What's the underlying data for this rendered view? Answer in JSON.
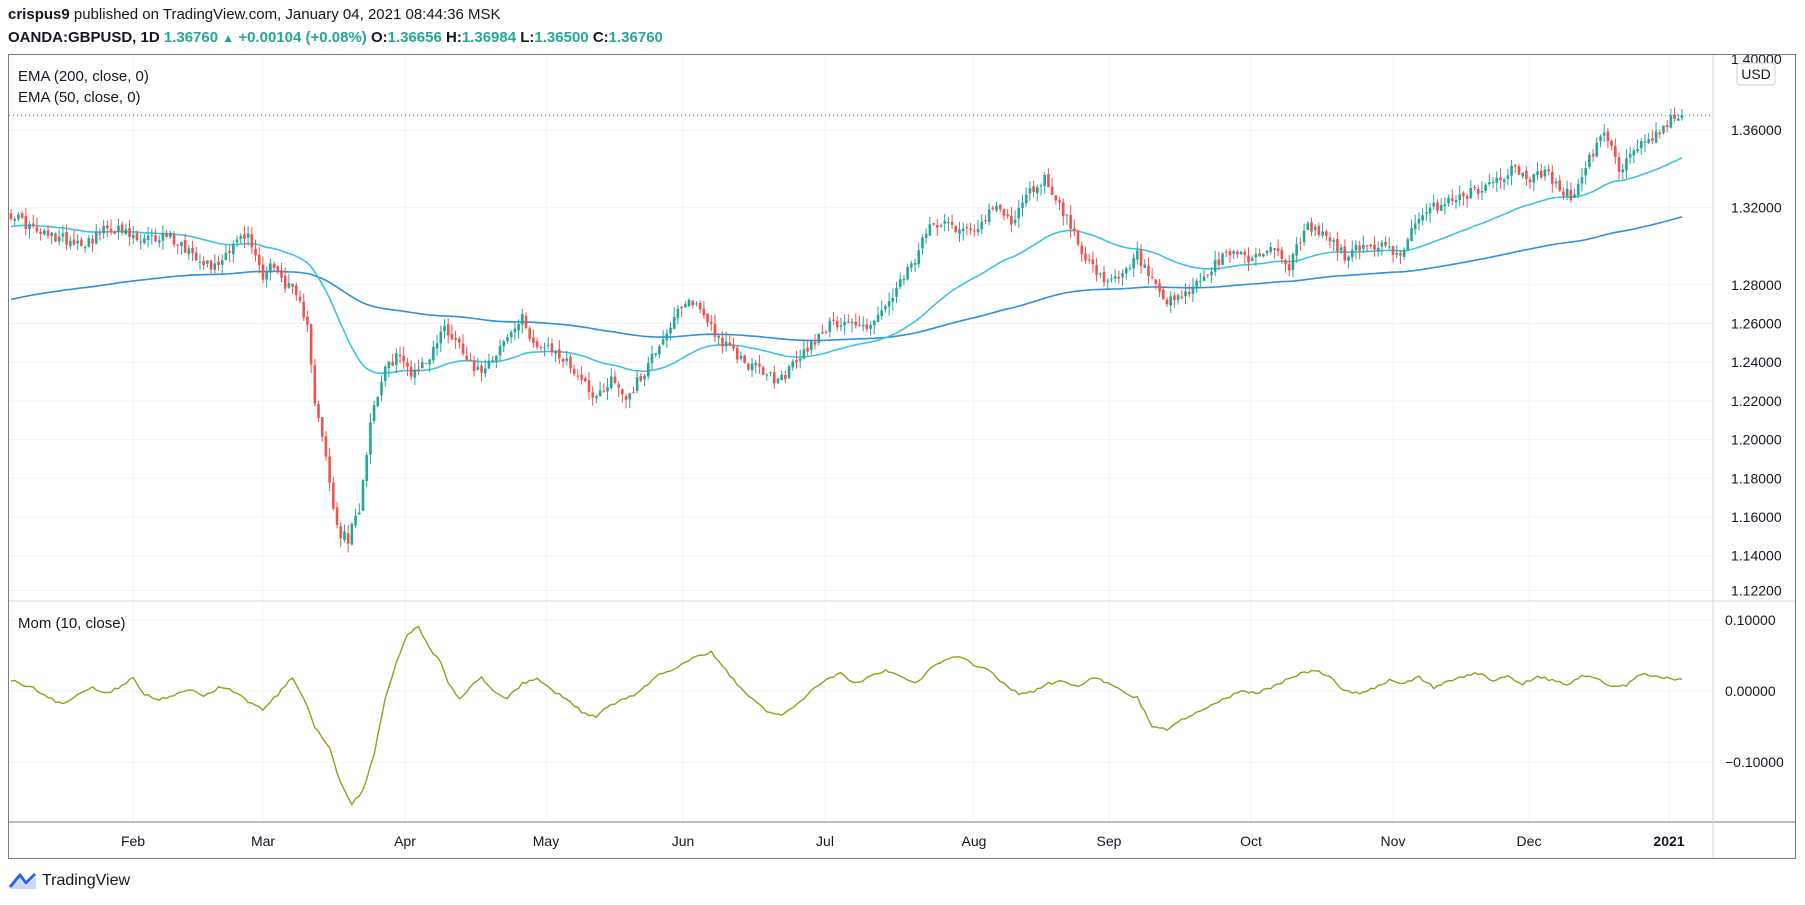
{
  "header": {
    "user": "crispus9",
    "published": "published on TradingView.com, January 04, 2021 08:44:36 MSK",
    "symbol": "OANDA:GBPUSD, 1D",
    "last": "1.36760",
    "triangle": "▲",
    "change": "+0.00104 (+0.08%)",
    "o_label": "O:",
    "o_val": "1.36656",
    "h_label": "H:",
    "h_val": "1.36984",
    "l_label": "L:",
    "l_val": "1.36500",
    "c_label": "C:",
    "c_val": "1.36760"
  },
  "indicators": {
    "ema200": "EMA (200, close, 0)",
    "ema50": "EMA (50, close, 0)",
    "mom": "Mom (10, close)"
  },
  "currency": "USD",
  "footer": {
    "brand": "TradingView",
    "logo_icon": "tradingview-logo-icon"
  },
  "colors": {
    "up": "#26a69a",
    "down": "#ef5350",
    "ema50": "#3dc4dc",
    "ema200": "#2f8fe0",
    "mom": "#9b9b1a"
  },
  "chart_data": [
    {
      "type": "candlestick",
      "yaxis_ticks": [
        "1.40000",
        "1.36000",
        "1.32000",
        "1.28000",
        "1.26000",
        "1.24000",
        "1.22000",
        "1.20000",
        "1.18000",
        "1.16000",
        "1.14000",
        "1.12200"
      ],
      "ylim": [
        1.122,
        1.4
      ],
      "x_labels": [
        "Feb",
        "Mar",
        "Apr",
        "May",
        "Jun",
        "Jul",
        "Aug",
        "Sep",
        "Oct",
        "Nov",
        "Dec",
        "2021"
      ],
      "close_key_points": [
        [
          0,
          1.317
        ],
        [
          8,
          1.306
        ],
        [
          20,
          1.302
        ],
        [
          27,
          1.31
        ],
        [
          35,
          1.302
        ],
        [
          42,
          1.306
        ],
        [
          48,
          1.298
        ],
        [
          55,
          1.289
        ],
        [
          60,
          1.302
        ],
        [
          64,
          1.305
        ],
        [
          68,
          1.285
        ],
        [
          70,
          1.291
        ],
        [
          76,
          1.276
        ],
        [
          80,
          1.262
        ],
        [
          82,
          1.22
        ],
        [
          85,
          1.19
        ],
        [
          88,
          1.153
        ],
        [
          91,
          1.148
        ],
        [
          94,
          1.165
        ],
        [
          97,
          1.21
        ],
        [
          100,
          1.232
        ],
        [
          104,
          1.244
        ],
        [
          108,
          1.235
        ],
        [
          112,
          1.24
        ],
        [
          117,
          1.258
        ],
        [
          122,
          1.247
        ],
        [
          126,
          1.235
        ],
        [
          132,
          1.248
        ],
        [
          138,
          1.262
        ],
        [
          142,
          1.248
        ],
        [
          147,
          1.245
        ],
        [
          152,
          1.236
        ],
        [
          158,
          1.222
        ],
        [
          162,
          1.232
        ],
        [
          166,
          1.222
        ],
        [
          170,
          1.232
        ],
        [
          175,
          1.25
        ],
        [
          180,
          1.265
        ],
        [
          184,
          1.272
        ],
        [
          188,
          1.262
        ],
        [
          192,
          1.25
        ],
        [
          198,
          1.24
        ],
        [
          203,
          1.235
        ],
        [
          207,
          1.23
        ],
        [
          212,
          1.24
        ],
        [
          216,
          1.25
        ],
        [
          220,
          1.258
        ],
        [
          225,
          1.262
        ],
        [
          230,
          1.258
        ],
        [
          235,
          1.265
        ],
        [
          240,
          1.28
        ],
        [
          244,
          1.293
        ],
        [
          248,
          1.31
        ],
        [
          252,
          1.315
        ],
        [
          256,
          1.308
        ],
        [
          262,
          1.312
        ],
        [
          266,
          1.32
        ],
        [
          270,
          1.313
        ],
        [
          275,
          1.328
        ],
        [
          279,
          1.335
        ],
        [
          282,
          1.325
        ],
        [
          286,
          1.31
        ],
        [
          290,
          1.295
        ],
        [
          295,
          1.28
        ],
        [
          300,
          1.284
        ],
        [
          304,
          1.295
        ],
        [
          307,
          1.285
        ],
        [
          311,
          1.27
        ],
        [
          315,
          1.272
        ],
        [
          320,
          1.28
        ],
        [
          325,
          1.29
        ],
        [
          330,
          1.298
        ],
        [
          335,
          1.293
        ],
        [
          340,
          1.3
        ],
        [
          345,
          1.29
        ],
        [
          350,
          1.31
        ],
        [
          355,
          1.305
        ],
        [
          360,
          1.295
        ],
        [
          365,
          1.3
        ],
        [
          370,
          1.3
        ],
        [
          374,
          1.295
        ],
        [
          379,
          1.31
        ],
        [
          384,
          1.32
        ],
        [
          390,
          1.325
        ],
        [
          395,
          1.328
        ],
        [
          400,
          1.333
        ],
        [
          405,
          1.34
        ],
        [
          410,
          1.335
        ],
        [
          414,
          1.338
        ],
        [
          418,
          1.33
        ],
        [
          422,
          1.325
        ],
        [
          426,
          1.345
        ],
        [
          430,
          1.358
        ],
        [
          434,
          1.34
        ],
        [
          438,
          1.35
        ],
        [
          442,
          1.355
        ],
        [
          446,
          1.362
        ],
        [
          449,
          1.366
        ],
        [
          451,
          1.3676
        ]
      ],
      "last_price": 1.3676,
      "ema50_end": 1.335,
      "ema200_end": 1.302
    },
    {
      "type": "line",
      "name": "Mom (10, close)",
      "yaxis_ticks": [
        "0.10000",
        "0.00000",
        "−0.10000"
      ],
      "ylim": [
        -0.185,
        0.12
      ],
      "key_points": [
        [
          0,
          0.015
        ],
        [
          6,
          0.005
        ],
        [
          10,
          -0.01
        ],
        [
          14,
          -0.018
        ],
        [
          18,
          -0.005
        ],
        [
          22,
          0.005
        ],
        [
          26,
          -0.003
        ],
        [
          30,
          0.008
        ],
        [
          33,
          0.02
        ],
        [
          36,
          -0.005
        ],
        [
          40,
          -0.012
        ],
        [
          44,
          -0.005
        ],
        [
          48,
          0.003
        ],
        [
          52,
          -0.008
        ],
        [
          56,
          0.005
        ],
        [
          60,
          0.0
        ],
        [
          64,
          -0.015
        ],
        [
          68,
          -0.025
        ],
        [
          72,
          -0.005
        ],
        [
          76,
          0.02
        ],
        [
          79,
          -0.01
        ],
        [
          82,
          -0.05
        ],
        [
          86,
          -0.08
        ],
        [
          89,
          -0.13
        ],
        [
          92,
          -0.16
        ],
        [
          95,
          -0.14
        ],
        [
          98,
          -0.09
        ],
        [
          101,
          -0.01
        ],
        [
          104,
          0.04
        ],
        [
          107,
          0.08
        ],
        [
          110,
          0.09
        ],
        [
          113,
          0.06
        ],
        [
          116,
          0.04
        ],
        [
          118,
          0.01
        ],
        [
          121,
          -0.01
        ],
        [
          124,
          0.005
        ],
        [
          127,
          0.02
        ],
        [
          130,
          0.0
        ],
        [
          134,
          -0.01
        ],
        [
          138,
          0.01
        ],
        [
          142,
          0.018
        ],
        [
          146,
          0.0
        ],
        [
          150,
          -0.01
        ],
        [
          154,
          -0.03
        ],
        [
          158,
          -0.035
        ],
        [
          162,
          -0.02
        ],
        [
          166,
          -0.01
        ],
        [
          170,
          0.0
        ],
        [
          174,
          0.02
        ],
        [
          178,
          0.03
        ],
        [
          182,
          0.04
        ],
        [
          186,
          0.05
        ],
        [
          189,
          0.055
        ],
        [
          192,
          0.035
        ],
        [
          196,
          0.01
        ],
        [
          200,
          -0.01
        ],
        [
          204,
          -0.03
        ],
        [
          208,
          -0.035
        ],
        [
          212,
          -0.02
        ],
        [
          216,
          0.0
        ],
        [
          220,
          0.015
        ],
        [
          224,
          0.025
        ],
        [
          228,
          0.01
        ],
        [
          232,
          0.02
        ],
        [
          236,
          0.028
        ],
        [
          240,
          0.02
        ],
        [
          244,
          0.01
        ],
        [
          248,
          0.03
        ],
        [
          252,
          0.045
        ],
        [
          256,
          0.05
        ],
        [
          260,
          0.035
        ],
        [
          264,
          0.03
        ],
        [
          268,
          0.01
        ],
        [
          272,
          -0.005
        ],
        [
          276,
          0.0
        ],
        [
          280,
          0.01
        ],
        [
          284,
          0.015
        ],
        [
          288,
          0.005
        ],
        [
          292,
          0.02
        ],
        [
          296,
          0.01
        ],
        [
          300,
          0.0
        ],
        [
          304,
          -0.01
        ],
        [
          308,
          -0.05
        ],
        [
          312,
          -0.055
        ],
        [
          316,
          -0.04
        ],
        [
          320,
          -0.03
        ],
        [
          324,
          -0.02
        ],
        [
          328,
          -0.01
        ],
        [
          332,
          0.0
        ],
        [
          336,
          -0.003
        ],
        [
          340,
          0.005
        ],
        [
          344,
          0.015
        ],
        [
          348,
          0.025
        ],
        [
          352,
          0.03
        ],
        [
          356,
          0.02
        ],
        [
          360,
          0.0
        ],
        [
          364,
          -0.003
        ],
        [
          368,
          0.005
        ],
        [
          372,
          0.015
        ],
        [
          376,
          0.01
        ],
        [
          380,
          0.02
        ],
        [
          384,
          0.005
        ],
        [
          388,
          0.015
        ],
        [
          392,
          0.02
        ],
        [
          396,
          0.025
        ],
        [
          400,
          0.015
        ],
        [
          404,
          0.02
        ],
        [
          408,
          0.01
        ],
        [
          412,
          0.02
        ],
        [
          416,
          0.015
        ],
        [
          420,
          0.01
        ],
        [
          424,
          0.02
        ],
        [
          428,
          0.018
        ],
        [
          432,
          0.005
        ],
        [
          436,
          0.008
        ],
        [
          440,
          0.025
        ],
        [
          444,
          0.02
        ],
        [
          448,
          0.018
        ],
        [
          451,
          0.015
        ]
      ]
    }
  ]
}
